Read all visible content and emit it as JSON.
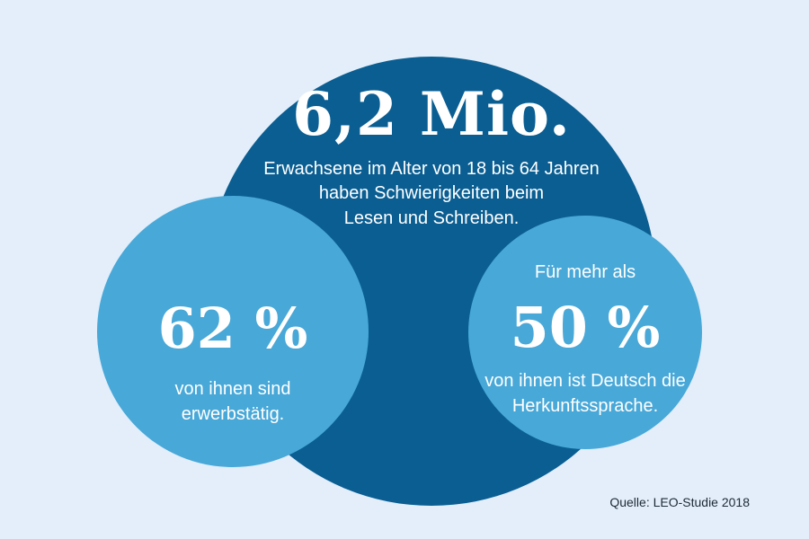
{
  "headline": "6,2 Mio.",
  "headline_description": [
    "Erwachsene im Alter von 18 bis 64 Jahren",
    "haben Schwierigkeiten beim",
    "Lesen und Schreiben."
  ],
  "left_stat": {
    "value": "62 %",
    "description": [
      "von ihnen sind",
      "erwerbstätig."
    ]
  },
  "right_stat": {
    "prefix": "Für mehr als",
    "value": "50 %",
    "description": [
      "von ihnen ist Deutsch die",
      "Herkunftssprache."
    ]
  },
  "source": "Quelle: LEO-Studie 2018",
  "colors": {
    "background": "#e3eefa",
    "big_circle": "#0a5e92",
    "small_circles": "#48a8d8",
    "text_light": "#ffffff",
    "text_dark": "#1d2a36"
  }
}
